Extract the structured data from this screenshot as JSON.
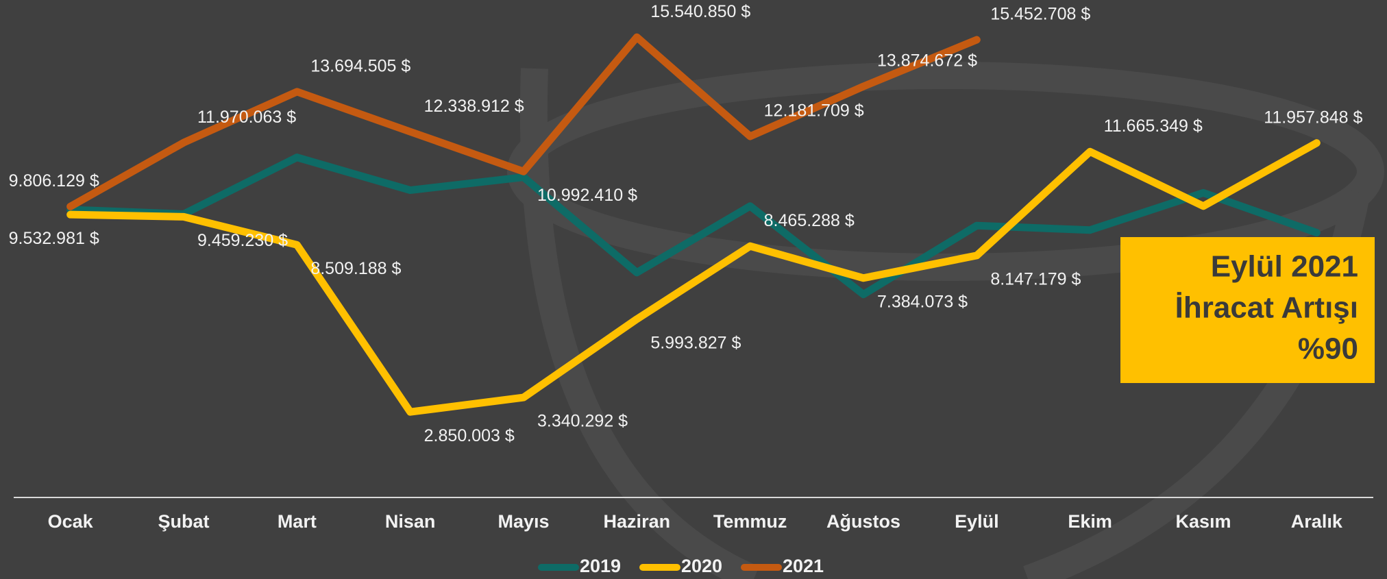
{
  "chart_data": {
    "type": "line",
    "categories": [
      "Ocak",
      "Şubat",
      "Mart",
      "Nisan",
      "Mayıs",
      "Haziran",
      "Temmuz",
      "Ağustos",
      "Eylül",
      "Ekim",
      "Kasım",
      "Aralık"
    ],
    "series": [
      {
        "name": "2019",
        "color": "#0e6b66",
        "values": [
          9700000,
          9550000,
          11470000,
          10360000,
          10800000,
          7570000,
          9820000,
          6830000,
          9160000,
          9010000,
          10270000,
          8920000
        ]
      },
      {
        "name": "2020",
        "color": "#ffc000",
        "values": [
          9532981,
          9459230,
          8509188,
          2850003,
          3340292,
          5993827,
          8465288,
          7384073,
          8147179,
          11665349,
          9820000,
          11957848
        ],
        "value_labels": [
          "9.532.981 $",
          "9.459.230 $",
          "8.509.188 $",
          "2.850.003 $",
          "3.340.292 $",
          "5.993.827 $",
          "8.465.288 $",
          "7.384.073 $",
          "8.147.179 $",
          "11.665.349 $",
          null,
          "11.957.848 $"
        ]
      },
      {
        "name": "2021",
        "color": "#c55a11",
        "values": [
          9806129,
          11970063,
          13694505,
          12338912,
          10992410,
          15540850,
          12181709,
          13874672,
          15452708,
          null,
          null,
          null
        ],
        "value_labels": [
          "9.806.129 $",
          "11.970.063 $",
          "13.694.505 $",
          "12.338.912 $",
          "10.992.410 $",
          "15.540.850 $",
          "12.181.709 $",
          "13.874.672 $",
          "15.452.708 $",
          null,
          null,
          null
        ]
      }
    ],
    "ylim": [
      0,
      16800000
    ],
    "annotation": [
      "Eylül 2021",
      "İhracat Artışı",
      "%90"
    ],
    "legend": "bottom"
  }
}
